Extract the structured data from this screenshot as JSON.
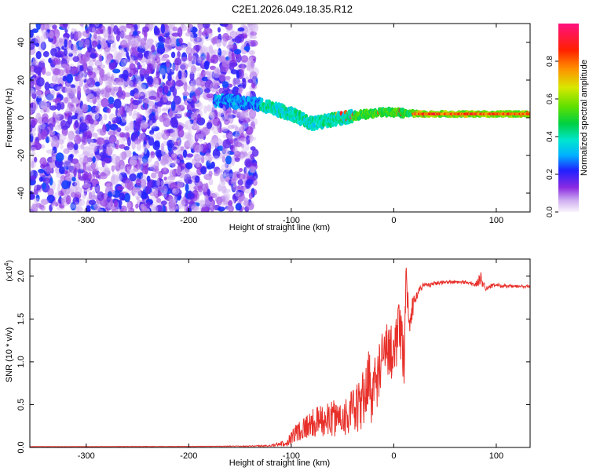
{
  "figure": {
    "title": "C2E1.2026.049.18.35.R12"
  },
  "chart_data": [
    {
      "type": "heatmap",
      "name": "spectrogram",
      "xlabel": "Height of straight line (km)",
      "ylabel": "Frequency (Hz)",
      "xlim": [
        -355,
        133
      ],
      "ylim": [
        -50,
        50
      ],
      "x_ticks": [
        -300,
        -200,
        -100,
        0,
        100
      ],
      "y_ticks": [
        -40,
        -20,
        0,
        20,
        40
      ],
      "colorbar": {
        "label": "Normalized spectral amplitude",
        "range": [
          0,
          1
        ],
        "ticks": [
          0.0,
          0.2,
          0.4,
          0.6,
          0.8
        ]
      },
      "regions": [
        {
          "description": "scattered low-amplitude noise",
          "x_range": [
            -355,
            -135
          ],
          "freq_range": [
            -50,
            50
          ],
          "amplitude_range": [
            0.05,
            0.25
          ]
        },
        {
          "description": "signal band",
          "x_range": [
            -175,
            133
          ],
          "center_freq_at": [
            [
              -170,
              9
            ],
            [
              -130,
              7
            ],
            [
              -100,
              2
            ],
            [
              -80,
              -3
            ],
            [
              -60,
              -1
            ],
            [
              -40,
              1
            ],
            [
              -10,
              3
            ],
            [
              30,
              2
            ],
            [
              133,
              2
            ]
          ],
          "amplitude_range": [
            0.2,
            0.9
          ]
        }
      ]
    },
    {
      "type": "line",
      "name": "snr",
      "xlabel": "Height of straight line (km)",
      "ylabel": "SNR (10 * v/v)",
      "y_scale_label": "(x10",
      "y_scale_exp": "4",
      "y_multiplier": 10000,
      "xlim": [
        -355,
        133
      ],
      "ylim": [
        0,
        2.2
      ],
      "x_ticks": [
        -300,
        -200,
        -100,
        0,
        100
      ],
      "y_ticks": [
        0.0,
        0.5,
        1.0,
        1.5,
        2.0
      ],
      "series": [
        {
          "name": "SNR",
          "color": "#e8302a",
          "x": [
            -355,
            -300,
            -250,
            -200,
            -150,
            -120,
            -105,
            -95,
            -85,
            -75,
            -65,
            -55,
            -45,
            -35,
            -30,
            -25,
            -20,
            -15,
            -10,
            -5,
            0,
            5,
            10,
            12,
            15,
            20,
            25,
            30,
            35,
            40,
            50,
            60,
            70,
            80,
            85,
            90,
            100,
            110,
            120,
            133
          ],
          "y": [
            0.01,
            0.01,
            0.012,
            0.012,
            0.015,
            0.02,
            0.05,
            0.18,
            0.25,
            0.3,
            0.32,
            0.35,
            0.38,
            0.45,
            0.55,
            0.8,
            0.6,
            0.9,
            1.0,
            1.2,
            1.1,
            1.4,
            1.0,
            2.0,
            1.5,
            1.7,
            1.85,
            1.9,
            1.9,
            1.92,
            1.93,
            1.93,
            1.93,
            1.9,
            1.97,
            1.86,
            1.9,
            1.88,
            1.88,
            1.88
          ],
          "noise": [
            0.002,
            0.002,
            0.002,
            0.002,
            0.004,
            0.01,
            0.04,
            0.12,
            0.15,
            0.18,
            0.2,
            0.22,
            0.25,
            0.3,
            0.35,
            0.4,
            0.4,
            0.35,
            0.4,
            0.35,
            0.35,
            0.3,
            0.35,
            0.15,
            0.2,
            0.08,
            0.05,
            0.04,
            0.03,
            0.025,
            0.02,
            0.02,
            0.02,
            0.03,
            0.08,
            0.03,
            0.02,
            0.02,
            0.02,
            0.02
          ]
        }
      ]
    }
  ]
}
